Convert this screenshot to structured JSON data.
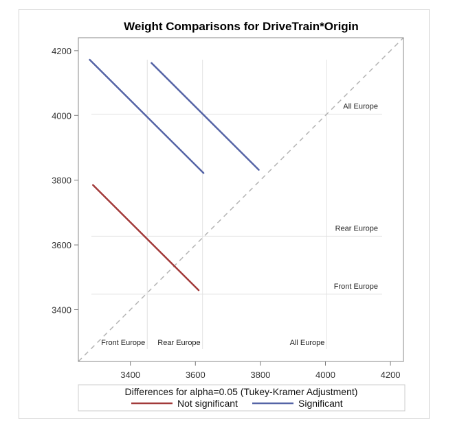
{
  "chart_data": {
    "type": "line",
    "title": "Weight Comparisons for DriveTrain*Origin",
    "xlim": [
      3240,
      4240
    ],
    "ylim": [
      3240,
      4240
    ],
    "xticks": [
      3400,
      3600,
      3800,
      4000,
      4200
    ],
    "yticks": [
      3400,
      3600,
      3800,
      4000,
      4200
    ],
    "diagonal": {
      "from": [
        3240,
        3240
      ],
      "to": [
        4240,
        4240
      ],
      "style": "dashed",
      "color": "#b4b4b4"
    },
    "reference_lines": {
      "x": [
        3452,
        3622,
        4004
      ],
      "y": [
        3448,
        3627,
        4004
      ]
    },
    "x_group_labels": [
      {
        "text": "Front Europe",
        "x": 3452
      },
      {
        "text": "Rear Europe",
        "x": 3622
      },
      {
        "text": "All Europe",
        "x": 4004
      }
    ],
    "y_group_labels": [
      {
        "text": "All Europe",
        "y": 4004
      },
      {
        "text": "Rear Europe",
        "y": 3627
      },
      {
        "text": "Front Europe",
        "y": 3448
      }
    ],
    "series": [
      {
        "name": "Not significant",
        "color": "#a23a3a",
        "segments": [
          {
            "x": [
              3285,
              3610
            ],
            "y": [
              3785,
              3460
            ]
          }
        ]
      },
      {
        "name": "Significant",
        "color": "#5564a6",
        "segments": [
          {
            "x": [
              3275,
              3625
            ],
            "y": [
              4172,
              3822
            ]
          },
          {
            "x": [
              3465,
              3795
            ],
            "y": [
              4162,
              3832
            ]
          }
        ]
      }
    ],
    "legend": {
      "title": "Differences for alpha=0.05 (Tukey-Kramer Adjustment)",
      "placement": "bottom"
    }
  }
}
